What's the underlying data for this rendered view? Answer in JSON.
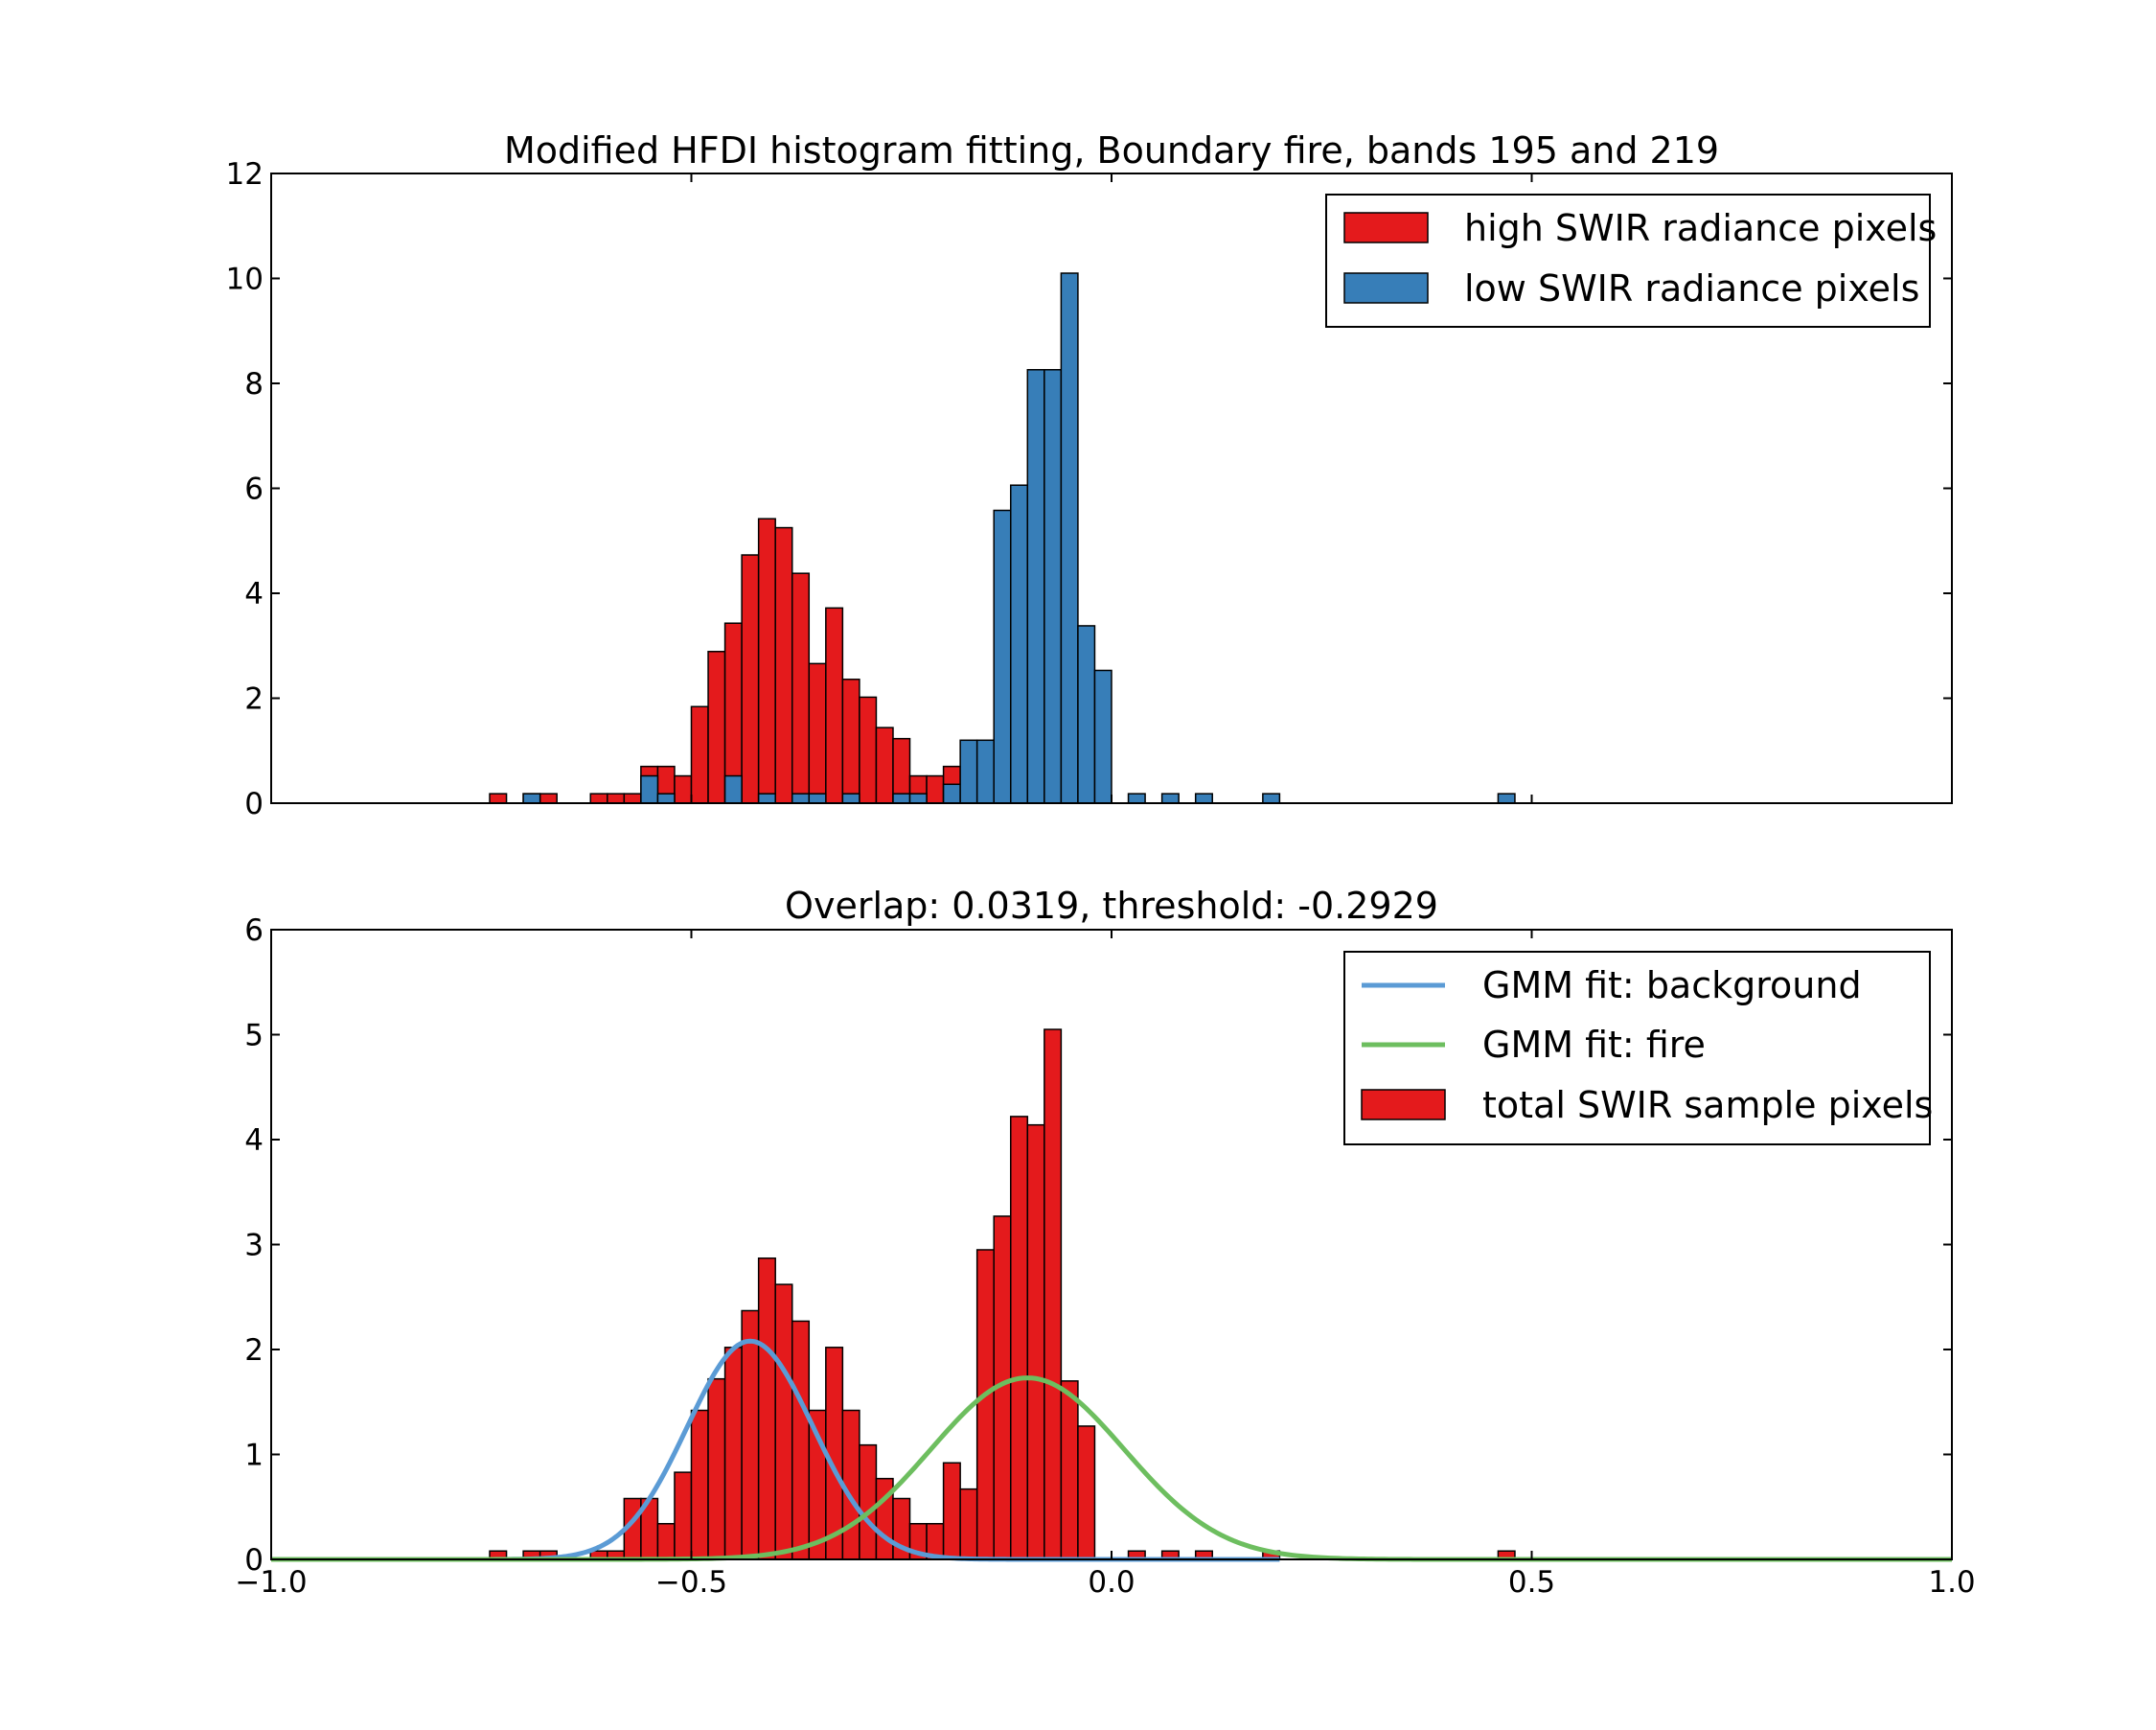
{
  "chart_data": [
    {
      "type": "bar",
      "title": "Modified HFDI histogram fitting, Boundary fire, bands 195 and 219",
      "xlabel": "",
      "ylabel": "",
      "xlim": [
        -1.0,
        1.0
      ],
      "ylim": [
        0,
        12
      ],
      "yticks": [
        0,
        2,
        4,
        6,
        8,
        10,
        12
      ],
      "yticklabels": [
        "0",
        "2",
        "4",
        "6",
        "8",
        "10",
        "12"
      ],
      "grid": false,
      "legend": "upper right",
      "bin_width": 0.02,
      "series": [
        {
          "name": "high SWIR radiance pixels",
          "color": "#e41a1c",
          "stacked": "bottom",
          "bars": [
            {
              "x": -0.74,
              "y": 0.18
            },
            {
              "x": -0.7,
              "y": 0.18
            },
            {
              "x": -0.68,
              "y": 0.18
            },
            {
              "x": -0.62,
              "y": 0.18
            },
            {
              "x": -0.6,
              "y": 0.18
            },
            {
              "x": -0.58,
              "y": 0.18
            },
            {
              "x": -0.56,
              "y": 0.7
            },
            {
              "x": -0.54,
              "y": 0.7
            },
            {
              "x": -0.52,
              "y": 0.52
            },
            {
              "x": -0.5,
              "y": 1.84
            },
            {
              "x": -0.48,
              "y": 2.89
            },
            {
              "x": -0.46,
              "y": 3.43
            },
            {
              "x": -0.44,
              "y": 4.73
            },
            {
              "x": -0.42,
              "y": 5.42
            },
            {
              "x": -0.4,
              "y": 5.25
            },
            {
              "x": -0.38,
              "y": 4.38
            },
            {
              "x": -0.36,
              "y": 2.66
            },
            {
              "x": -0.34,
              "y": 3.72
            },
            {
              "x": -0.32,
              "y": 2.36
            },
            {
              "x": -0.3,
              "y": 2.02
            },
            {
              "x": -0.28,
              "y": 1.44
            },
            {
              "x": -0.26,
              "y": 1.23
            },
            {
              "x": -0.24,
              "y": 0.52
            },
            {
              "x": -0.22,
              "y": 0.52
            },
            {
              "x": -0.2,
              "y": 0.7
            }
          ]
        },
        {
          "name": "low SWIR radiance pixels",
          "color": "#377eb8",
          "stacked": "top",
          "bars": [
            {
              "x": -0.7,
              "y": 0.18
            },
            {
              "x": -0.56,
              "y": 0.52
            },
            {
              "x": -0.54,
              "y": 0.18
            },
            {
              "x": -0.46,
              "y": 0.52
            },
            {
              "x": -0.42,
              "y": 0.18
            },
            {
              "x": -0.38,
              "y": 0.18
            },
            {
              "x": -0.36,
              "y": 0.18
            },
            {
              "x": -0.32,
              "y": 0.18
            },
            {
              "x": -0.26,
              "y": 0.18
            },
            {
              "x": -0.24,
              "y": 0.18
            },
            {
              "x": -0.2,
              "y": 0.36
            },
            {
              "x": -0.18,
              "y": 1.2
            },
            {
              "x": -0.16,
              "y": 1.2
            },
            {
              "x": -0.14,
              "y": 5.58
            },
            {
              "x": -0.12,
              "y": 6.06
            },
            {
              "x": -0.1,
              "y": 8.26
            },
            {
              "x": -0.08,
              "y": 8.26
            },
            {
              "x": -0.06,
              "y": 10.1
            },
            {
              "x": -0.04,
              "y": 3.38
            },
            {
              "x": -0.02,
              "y": 2.53
            },
            {
              "x": 0.02,
              "y": 0.18
            },
            {
              "x": 0.06,
              "y": 0.18
            },
            {
              "x": 0.1,
              "y": 0.18
            },
            {
              "x": 0.18,
              "y": 0.18
            },
            {
              "x": 0.46,
              "y": 0.18
            }
          ]
        }
      ]
    },
    {
      "type": "bar",
      "title": "Overlap: 0.0319, threshold: -0.2929",
      "xlabel": "",
      "ylabel": "",
      "xlim": [
        -1.0,
        1.0
      ],
      "ylim": [
        0,
        6
      ],
      "xticks": [
        -1.0,
        -0.5,
        0.0,
        0.5,
        1.0
      ],
      "xticklabels": [
        "−1.0",
        "−0.5",
        "0.0",
        "0.5",
        "1.0"
      ],
      "yticks": [
        0,
        1,
        2,
        3,
        4,
        5,
        6
      ],
      "yticklabels": [
        "0",
        "1",
        "2",
        "3",
        "4",
        "5",
        "6"
      ],
      "grid": false,
      "legend": "upper right",
      "bin_width": 0.02,
      "series": [
        {
          "name": "total SWIR sample pixels",
          "color": "#e41a1c",
          "bars": [
            {
              "x": -0.74,
              "y": 0.08
            },
            {
              "x": -0.7,
              "y": 0.08
            },
            {
              "x": -0.68,
              "y": 0.08
            },
            {
              "x": -0.62,
              "y": 0.08
            },
            {
              "x": -0.6,
              "y": 0.08
            },
            {
              "x": -0.58,
              "y": 0.58
            },
            {
              "x": -0.56,
              "y": 0.58
            },
            {
              "x": -0.54,
              "y": 0.34
            },
            {
              "x": -0.52,
              "y": 0.83
            },
            {
              "x": -0.5,
              "y": 1.42
            },
            {
              "x": -0.48,
              "y": 1.72
            },
            {
              "x": -0.46,
              "y": 2.02
            },
            {
              "x": -0.44,
              "y": 2.37
            },
            {
              "x": -0.42,
              "y": 2.87
            },
            {
              "x": -0.4,
              "y": 2.62
            },
            {
              "x": -0.38,
              "y": 2.27
            },
            {
              "x": -0.36,
              "y": 1.42
            },
            {
              "x": -0.34,
              "y": 2.02
            },
            {
              "x": -0.32,
              "y": 1.42
            },
            {
              "x": -0.3,
              "y": 1.09
            },
            {
              "x": -0.28,
              "y": 0.77
            },
            {
              "x": -0.26,
              "y": 0.58
            },
            {
              "x": -0.24,
              "y": 0.34
            },
            {
              "x": -0.22,
              "y": 0.34
            },
            {
              "x": -0.2,
              "y": 0.92
            },
            {
              "x": -0.18,
              "y": 0.67
            },
            {
              "x": -0.16,
              "y": 2.95
            },
            {
              "x": -0.14,
              "y": 3.27
            },
            {
              "x": -0.12,
              "y": 4.22
            },
            {
              "x": -0.1,
              "y": 4.14
            },
            {
              "x": -0.08,
              "y": 5.05
            },
            {
              "x": -0.06,
              "y": 1.7
            },
            {
              "x": -0.04,
              "y": 1.27
            },
            {
              "x": 0.02,
              "y": 0.08
            },
            {
              "x": 0.06,
              "y": 0.08
            },
            {
              "x": 0.1,
              "y": 0.08
            },
            {
              "x": 0.18,
              "y": 0.08
            },
            {
              "x": 0.46,
              "y": 0.08
            }
          ]
        },
        {
          "name": "GMM fit: background",
          "type": "line",
          "color": "#5b9bd5",
          "gaussian": {
            "mean": -0.43,
            "sd": 0.075,
            "peak": 2.08
          },
          "x_range": [
            -1.0,
            0.2
          ]
        },
        {
          "name": "GMM fit: fire",
          "type": "line",
          "color": "#6dbe5f",
          "gaussian": {
            "mean": -0.1,
            "sd": 0.115,
            "peak": 1.73
          },
          "x_range": [
            -1.0,
            1.0
          ]
        }
      ]
    }
  ]
}
